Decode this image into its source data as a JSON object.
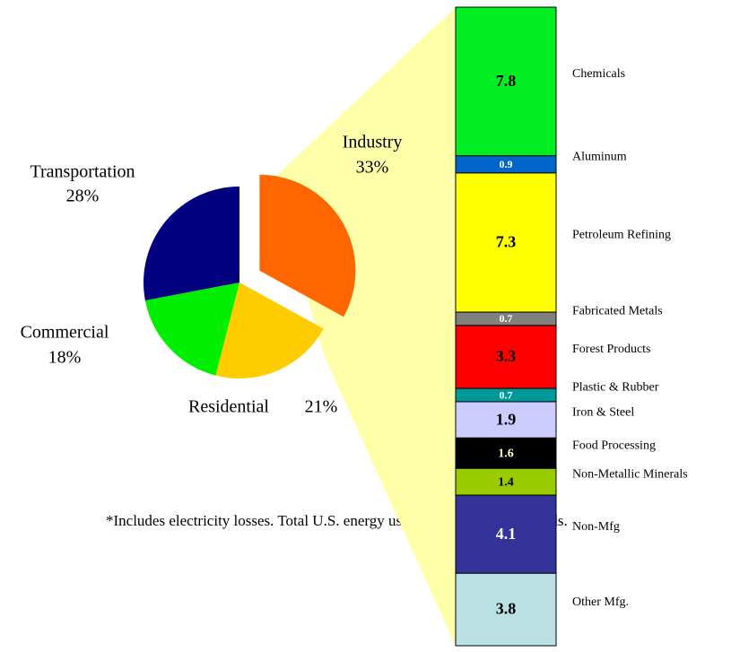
{
  "chart_data": [
    {
      "type": "pie",
      "categories": [
        "Industry",
        "Residential",
        "Commercial",
        "Transportation"
      ],
      "values": [
        33,
        21,
        18,
        28
      ],
      "value_labels": [
        "33%",
        "21%",
        "18%",
        "28%"
      ],
      "colors": [
        "#ff6600",
        "#ffcc00",
        "#00ee00",
        "#000080"
      ]
    },
    {
      "type": "stacked_bar",
      "categories": [
        "Chemicals",
        "Aluminum",
        "Petroleum Refining",
        "Fabricated Metals",
        "Forest Products",
        "Plastic & Rubber",
        "Iron & Steel",
        "Food Processing",
        "Non-Metallic Minerals",
        "Non-Mfg",
        "Other Mfg."
      ],
      "values": [
        7.8,
        0.9,
        7.3,
        0.7,
        3.3,
        0.7,
        1.9,
        1.6,
        1.4,
        4.1,
        3.8
      ],
      "colors": [
        "#00ee22",
        "#0066cc",
        "#ffff00",
        "#808080",
        "#ff0000",
        "#009999",
        "#ccccff",
        "#000000",
        "#99cc00",
        "#333399",
        "#bbe0e3"
      ],
      "value_label_colors": [
        "#000",
        "#fff",
        "#000",
        "#fff",
        "#000",
        "#fff",
        "#000",
        "#ffffcc",
        "#000",
        "#fff",
        "#000"
      ]
    }
  ],
  "footnote": "*Includes electricity losses. Total U.S. energy use in 2004 was 100.3 quads."
}
